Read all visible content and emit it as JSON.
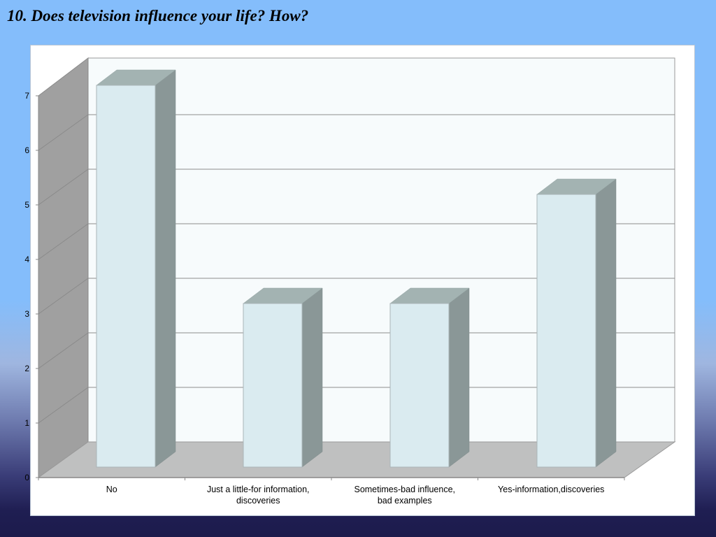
{
  "slide": {
    "title": "10. Does television influence your life? How?"
  },
  "colors": {
    "background_top": "#84bdfb",
    "background_bottom": "#1c1b4c",
    "panel": "#ffffff",
    "back_wall": "#f7fbfc",
    "side_wall": "#a0a0a0",
    "floor": "#bfc0c0",
    "bar_front": "#daebf0",
    "bar_top": "#a3b3b2",
    "bar_side": "#8a9797",
    "gridline": "#8c8c8c"
  },
  "chart_data": {
    "type": "bar",
    "style": "3d-column",
    "title": "10. Does television influence your life? How?",
    "categories": [
      "No",
      "Just a little-for information, discoveries",
      "Sometimes-bad influence, bad examples",
      "Yes-information,discoveries"
    ],
    "values": [
      7,
      3,
      3,
      5
    ],
    "xlabel": "",
    "ylabel": "",
    "ylim": [
      0,
      7
    ],
    "yticks": [
      "0",
      "1",
      "2",
      "3",
      "4",
      "5",
      "6",
      "7"
    ],
    "grid": true,
    "legend": null
  },
  "xlabels": [
    {
      "line1": "No",
      "line2": ""
    },
    {
      "line1": "Just a little-for information,",
      "line2": "discoveries"
    },
    {
      "line1": "Sometimes-bad influence,",
      "line2": "bad examples"
    },
    {
      "line1": "Yes-information,discoveries",
      "line2": ""
    }
  ]
}
